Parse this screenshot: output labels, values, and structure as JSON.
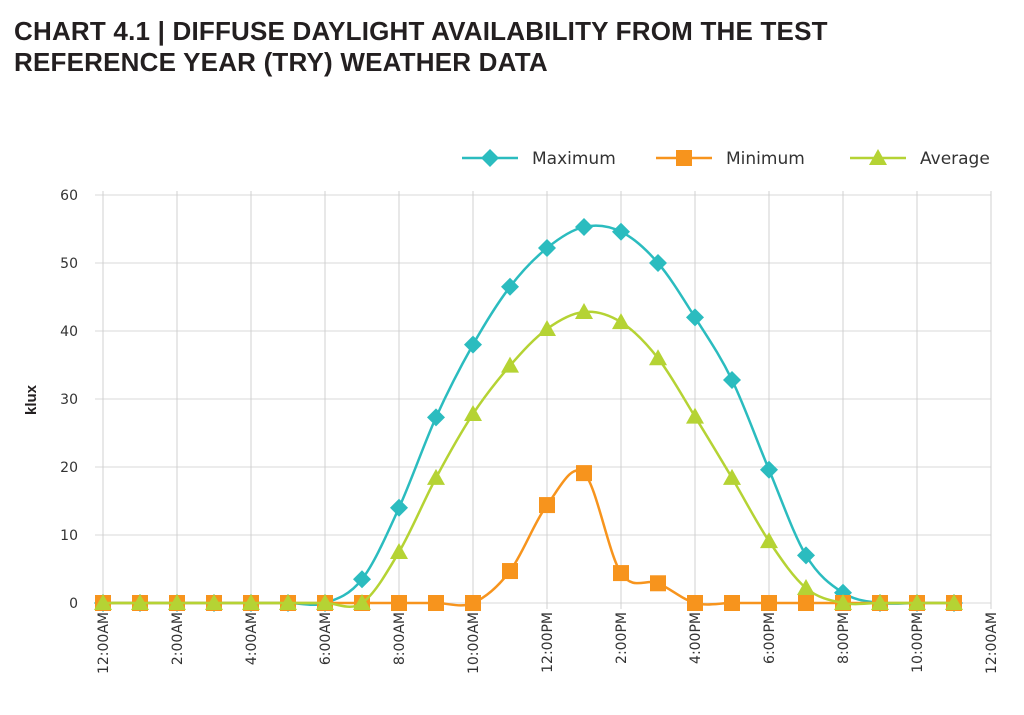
{
  "title_line1": "CHART 4.1 | DIFFUSE DAYLIGHT AVAILABILITY FROM THE TEST",
  "title_line2": "REFERENCE YEAR (TRY) WEATHER DATA",
  "chart_data": {
    "type": "line",
    "title": "CHART 4.1 | DIFFUSE DAYLIGHT AVAILABILITY FROM THE TEST REFERENCE YEAR (TRY) WEATHER DATA",
    "xlabel": "",
    "ylabel": "klux",
    "ylim": [
      0,
      60
    ],
    "yticks": [
      "0",
      "10",
      "20",
      "30",
      "40",
      "50",
      "60"
    ],
    "xtick_labels": [
      "12:00AM",
      "2:00AM",
      "4:00AM",
      "6:00AM",
      "8:00AM",
      "10:00AM",
      "12:00PM",
      "2:00PM",
      "4:00PM",
      "6:00PM",
      "8:00PM",
      "10:00PM",
      "12:00AM"
    ],
    "x_hours": [
      0,
      1,
      2,
      3,
      4,
      5,
      6,
      7,
      8,
      9,
      10,
      11,
      12,
      13,
      14,
      15,
      16,
      17,
      18,
      19,
      20,
      21,
      22,
      23
    ],
    "xlim_hours": [
      0,
      24
    ],
    "grid": true,
    "smoothed": true,
    "legend_position": "top-right",
    "series": [
      {
        "name": "Maximum",
        "color": "#2bbcbf",
        "marker": "diamond",
        "values": [
          0,
          0,
          0,
          0,
          0,
          0,
          0,
          3.5,
          14,
          27.3,
          38,
          46.5,
          52.2,
          55.3,
          54.6,
          50,
          42,
          32.8,
          19.6,
          7,
          1.5,
          0,
          0,
          0
        ]
      },
      {
        "name": "Minimum",
        "color": "#f7941d",
        "marker": "square",
        "values": [
          0,
          0,
          0,
          0,
          0,
          0,
          0,
          0,
          0,
          0,
          0,
          4.7,
          14.4,
          19.1,
          4.4,
          2.9,
          0,
          0,
          0,
          0,
          0,
          0,
          0,
          0
        ]
      },
      {
        "name": "Average",
        "color": "#b5d334",
        "marker": "triangle",
        "values": [
          0,
          0,
          0,
          0,
          0,
          0,
          0,
          0,
          7.5,
          18.4,
          27.8,
          34.9,
          40.3,
          42.8,
          41.3,
          36,
          27.4,
          18.4,
          9.1,
          2.2,
          0,
          0,
          0,
          0
        ]
      }
    ]
  }
}
